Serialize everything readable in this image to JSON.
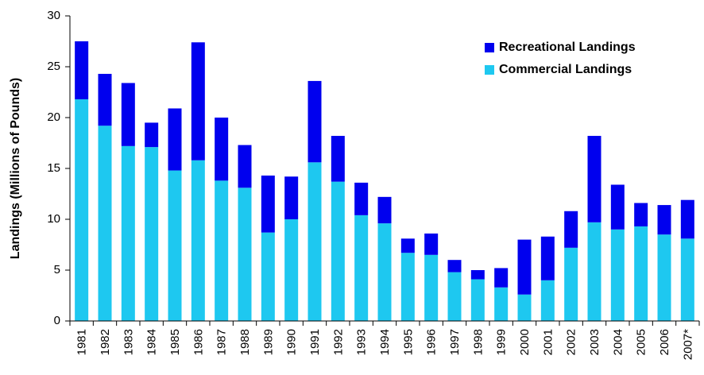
{
  "chart_data": {
    "type": "stacked_bar",
    "y_label": "Landings (Millions of Pounds)",
    "categories": [
      "1981",
      "1982",
      "1983",
      "1984",
      "1985",
      "1986",
      "1987",
      "1988",
      "1989",
      "1990",
      "1991",
      "1992",
      "1993",
      "1994",
      "1995",
      "1996",
      "1997",
      "1998",
      "1999",
      "2000",
      "2001",
      "2002",
      "2003",
      "2004",
      "2005",
      "2006",
      "2007*"
    ],
    "series": [
      {
        "name": "Commercial Landings",
        "color": "#1ec8f0",
        "values": [
          21.8,
          19.2,
          17.2,
          17.1,
          14.8,
          15.8,
          13.8,
          13.1,
          8.7,
          10.0,
          15.6,
          13.7,
          10.4,
          9.6,
          6.7,
          6.5,
          4.8,
          4.1,
          3.3,
          2.6,
          4.0,
          7.2,
          9.7,
          9.0,
          9.3,
          8.5,
          8.1
        ]
      },
      {
        "name": "Recreational Landings",
        "color": "#0000ee",
        "values": [
          5.7,
          5.1,
          6.2,
          2.4,
          6.1,
          11.6,
          6.2,
          4.2,
          5.6,
          4.2,
          8.0,
          4.5,
          3.2,
          2.6,
          1.4,
          2.1,
          1.2,
          0.9,
          1.9,
          5.4,
          4.3,
          3.6,
          8.5,
          4.4,
          2.3,
          2.9,
          3.8
        ]
      }
    ],
    "ylim": [
      0,
      30
    ],
    "yticks": [
      0,
      5,
      10,
      15,
      20,
      25,
      30
    ],
    "grid": false,
    "legend": "top-right"
  }
}
